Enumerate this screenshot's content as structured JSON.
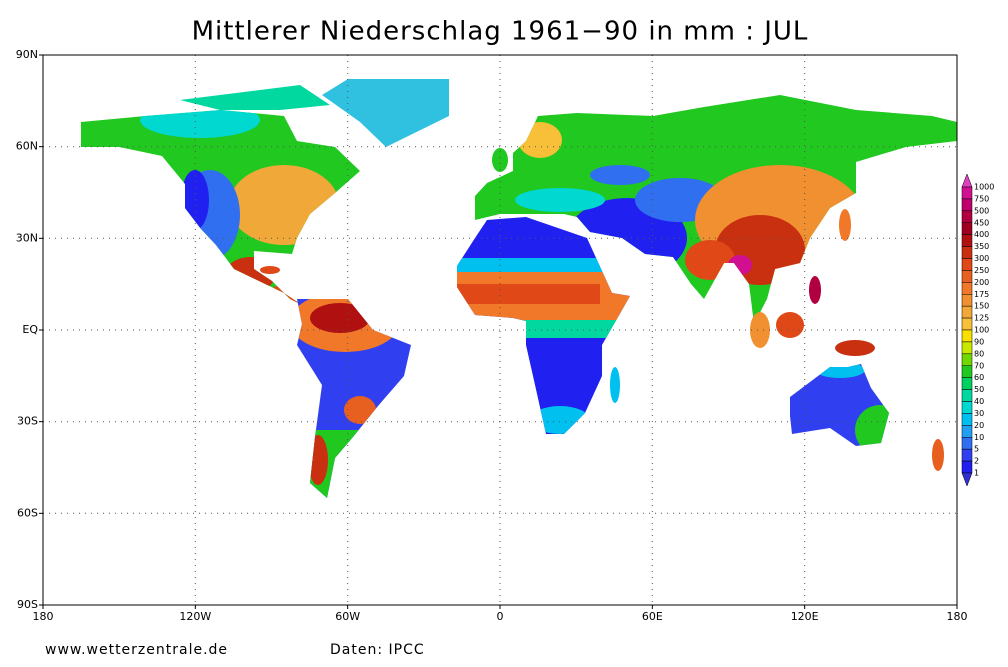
{
  "title": "Mittlerer Niederschlag 1961−90 in mm : JUL",
  "map": {
    "lat_labels": [
      "90N",
      "60N",
      "30N",
      "EQ",
      "30S",
      "60S",
      "90S"
    ],
    "lon_labels": [
      "180",
      "120W",
      "60W",
      "0",
      "60E",
      "120E",
      "180"
    ]
  },
  "legend": {
    "levels": [
      "1000",
      "750",
      "500",
      "450",
      "400",
      "350",
      "300",
      "250",
      "200",
      "175",
      "150",
      "125",
      "100",
      "90",
      "80",
      "70",
      "60",
      "50",
      "40",
      "30",
      "20",
      "10",
      "5",
      "2",
      "1"
    ],
    "colors": [
      "#e040c0",
      "#d01090",
      "#c0006a",
      "#b00040",
      "#a00020",
      "#b01010",
      "#c83010",
      "#e04818",
      "#e86020",
      "#f07828",
      "#f09030",
      "#f0a838",
      "#f8c038",
      "#f8e000",
      "#c8e800",
      "#70d800",
      "#20c820",
      "#00d060",
      "#00d8a0",
      "#00d8d0",
      "#00c0f0",
      "#20a0f0",
      "#3070f0",
      "#3040f0",
      "#2020f0",
      "#3030d0"
    ]
  },
  "footer": {
    "source_site": "www.wetterzentrale.de",
    "data_credit": "Daten: IPCC"
  }
}
